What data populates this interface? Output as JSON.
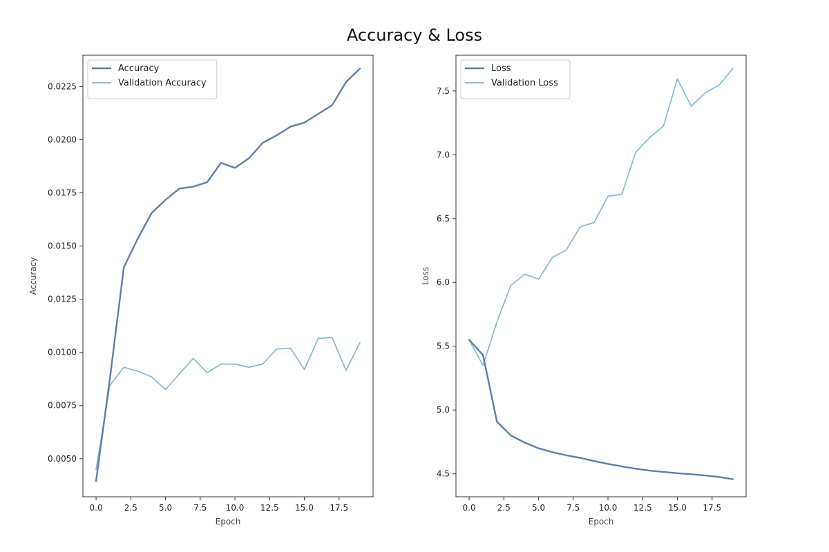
{
  "figure": {
    "title": "Accuracy & Loss"
  },
  "colors": {
    "train": "#5b7fa8",
    "validation": "#7fbcd0",
    "axis": "#333333",
    "label": "#444444"
  },
  "chart_data": [
    {
      "type": "line",
      "title": "",
      "xlabel": "Epoch",
      "ylabel": "Accuracy",
      "xlim": [
        -0.95,
        19.95
      ],
      "ylim": [
        0.00321,
        0.02397
      ],
      "xticks": [
        0,
        2.5,
        5,
        7.5,
        10,
        12.5,
        15,
        17.5
      ],
      "xtick_labels": [
        "0.0",
        "2.5",
        "5.0",
        "7.5",
        "10.0",
        "12.5",
        "15.0",
        "17.5"
      ],
      "yticks": [
        0.005,
        0.0075,
        0.01,
        0.0125,
        0.015,
        0.0175,
        0.02,
        0.0225
      ],
      "ytick_labels": [
        "0.0050",
        "0.0075",
        "0.0100",
        "0.0125",
        "0.0150",
        "0.0175",
        "0.0200",
        "0.0225"
      ],
      "legend_position": "top-left",
      "grid": false,
      "x": [
        0,
        1,
        2,
        3,
        4,
        5,
        6,
        7,
        8,
        9,
        10,
        11,
        12,
        13,
        14,
        15,
        16,
        17,
        18,
        19
      ],
      "series": [
        {
          "name": "Accuracy",
          "color": "#5b7fa8",
          "role": "train",
          "values": [
            0.00395,
            0.0088,
            0.014,
            0.01535,
            0.01655,
            0.01717,
            0.0177,
            0.01779,
            0.018,
            0.01891,
            0.01867,
            0.01912,
            0.01985,
            0.0202,
            0.02061,
            0.0208,
            0.02121,
            0.02162,
            0.0227,
            0.02334
          ]
        },
        {
          "name": "Validation Accuracy",
          "color": "#7fbcd0",
          "role": "validation",
          "values": [
            0.0045,
            0.00845,
            0.0093,
            0.00911,
            0.00885,
            0.00825,
            0.00899,
            0.00972,
            0.00904,
            0.00945,
            0.00945,
            0.0093,
            0.00945,
            0.01015,
            0.0102,
            0.0092,
            0.01065,
            0.0107,
            0.00915,
            0.01045
          ]
        }
      ]
    },
    {
      "type": "line",
      "title": "",
      "xlabel": "Epoch",
      "ylabel": "Loss",
      "xlim": [
        -0.95,
        19.95
      ],
      "ylim": [
        4.32,
        7.78
      ],
      "xticks": [
        0,
        2.5,
        5,
        7.5,
        10,
        12.5,
        15,
        17.5
      ],
      "xtick_labels": [
        "0.0",
        "2.5",
        "5.0",
        "7.5",
        "10.0",
        "12.5",
        "15.0",
        "17.5"
      ],
      "yticks": [
        4.5,
        5.0,
        5.5,
        6.0,
        6.5,
        7.0,
        7.5
      ],
      "ytick_labels": [
        "4.5",
        "5.0",
        "5.5",
        "6.0",
        "6.5",
        "7.0",
        "7.5"
      ],
      "legend_position": "top-left",
      "grid": false,
      "x": [
        0,
        1,
        2,
        3,
        4,
        5,
        6,
        7,
        8,
        9,
        10,
        11,
        12,
        13,
        14,
        15,
        16,
        17,
        18,
        19
      ],
      "series": [
        {
          "name": "Loss",
          "color": "#5b7fa8",
          "role": "train",
          "values": [
            5.55,
            5.43,
            4.91,
            4.8,
            4.745,
            4.7,
            4.67,
            4.645,
            4.625,
            4.6,
            4.578,
            4.558,
            4.54,
            4.525,
            4.515,
            4.505,
            4.497,
            4.487,
            4.475,
            4.458
          ]
        },
        {
          "name": "Validation Loss",
          "color": "#7fbcd0",
          "role": "validation",
          "values": [
            5.55,
            5.35,
            5.69,
            5.975,
            6.065,
            6.025,
            6.195,
            6.255,
            6.435,
            6.47,
            6.675,
            6.69,
            7.02,
            7.135,
            7.225,
            7.595,
            7.38,
            7.485,
            7.545,
            7.675
          ]
        }
      ]
    }
  ]
}
